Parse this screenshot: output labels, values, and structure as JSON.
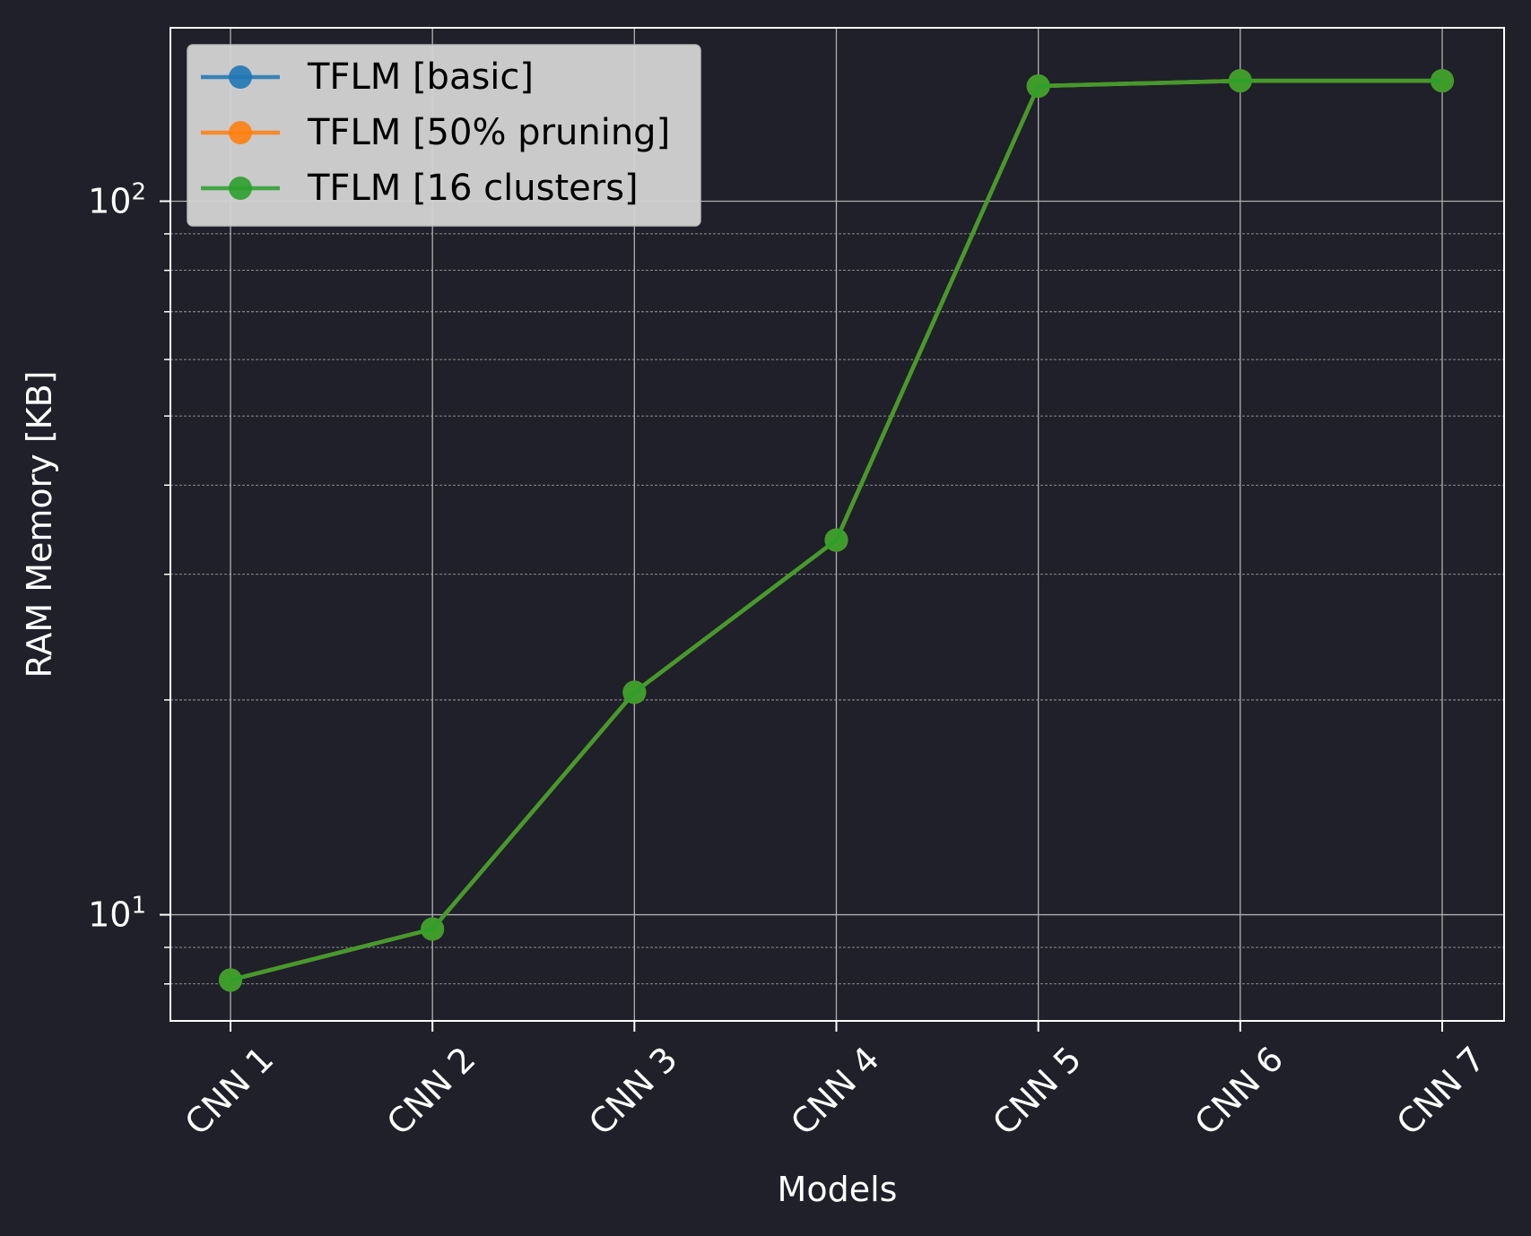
{
  "chart_data": {
    "type": "line",
    "title": "",
    "xlabel": "Models",
    "ylabel": "RAM Memory [KB]",
    "yscale": "log",
    "ylim": [
      7.1,
      175
    ],
    "ytick_labels": [
      {
        "base": "10",
        "exp": "1",
        "value": 10
      },
      {
        "base": "10",
        "exp": "2",
        "value": 100
      }
    ],
    "grid": true,
    "legend_position": "top-left",
    "categories": [
      "CNN 1",
      "CNN 2",
      "CNN 3",
      "CNN 4",
      "CNN 5",
      "CNN 6",
      "CNN 7"
    ],
    "series": [
      {
        "name": "TFLM [basic]",
        "color": "#1f77b4",
        "values": [
          8.1,
          9.55,
          20.5,
          33.5,
          145,
          147.5,
          147.5
        ]
      },
      {
        "name": "TFLM [50% pruning]",
        "color": "#ff7f0e",
        "values": [
          8.1,
          9.55,
          20.5,
          33.5,
          145,
          147.5,
          147.5
        ]
      },
      {
        "name": "TFLM [16 clusters]",
        "color": "#2ca02c",
        "values": [
          8.1,
          9.55,
          20.5,
          33.5,
          145,
          147.5,
          147.5
        ]
      }
    ]
  }
}
